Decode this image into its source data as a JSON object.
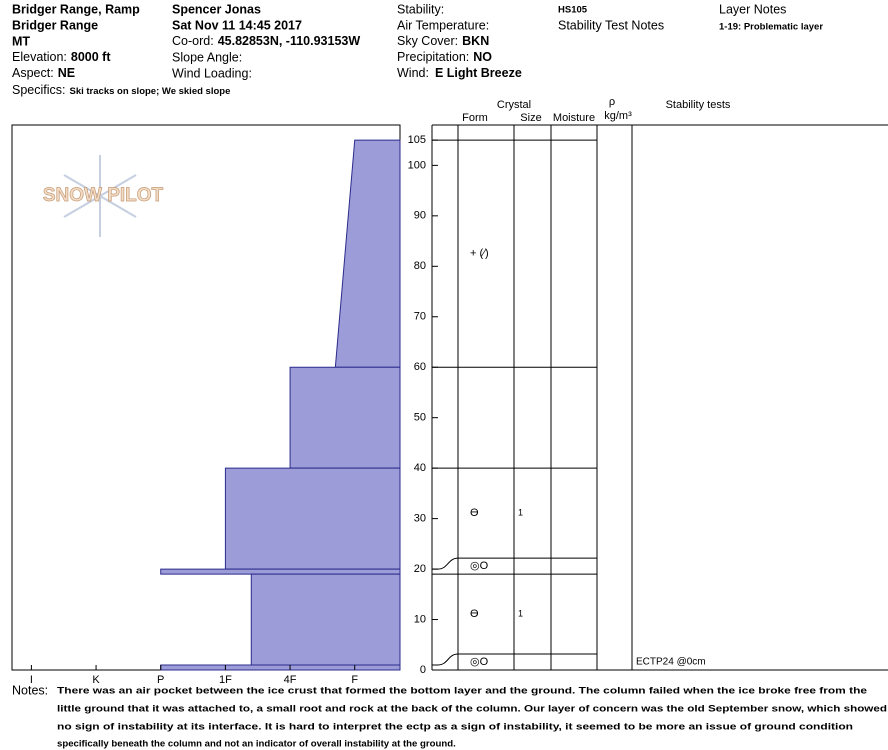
{
  "header": {
    "location": "Bridger Range, Ramp",
    "range": "Bridger Range",
    "state": "MT",
    "elevation": {
      "label": "Elevation:",
      "value": "8000 ft"
    },
    "aspect": {
      "label": "Aspect:",
      "value": "NE"
    },
    "specifics": {
      "label": "Specifics:",
      "value": "Ski tracks on slope; We skied slope"
    },
    "observer": "Spencer Jonas",
    "date": "Sat Nov 11 14:45 2017",
    "coord": {
      "label": "Co-ord:",
      "value": "45.82853N, -110.93153W"
    },
    "slope_angle": "Slope Angle:",
    "wind_loading": "Wind Loading:",
    "stability": "Stability:",
    "air_temperature": "Air Temperature:",
    "sky_cover": {
      "label": "Sky Cover:",
      "value": "BKN"
    },
    "precipitation": {
      "label": "Precipitation:",
      "value": "NO"
    },
    "wind": {
      "label": "Wind:",
      "value": "E Light Breeze"
    },
    "hs": "HS105",
    "stability_test_notes": "Stability Test Notes",
    "layer_notes": {
      "label": "Layer Notes",
      "value": "1-19: Problematic layer"
    }
  },
  "logo": "SNOW PILOT",
  "columns": {
    "crystal": "Crystal",
    "form": "Form",
    "size": "Size",
    "moisture": "Moisture",
    "rho": "ρ",
    "density_unit": "kg/m³",
    "stability": "Stability tests"
  },
  "chart_data": {
    "type": "snow-profile",
    "color": "#9c9cd8",
    "edge_color": "#2b2b8c",
    "ylim": [
      0,
      108
    ],
    "yticks": [
      0,
      10,
      20,
      30,
      40,
      50,
      60,
      70,
      80,
      90,
      100,
      105
    ],
    "xlim": [
      6.3,
      0.3
    ],
    "xticks": [
      {
        "value": 6,
        "label": "I"
      },
      {
        "value": 5,
        "label": "K"
      },
      {
        "value": 4,
        "label": "P"
      },
      {
        "value": 3,
        "label": "1F"
      },
      {
        "value": 2,
        "label": "4F"
      },
      {
        "value": 1,
        "label": "F"
      }
    ],
    "layers": [
      {
        "top": 105,
        "bottom": 60,
        "hardness_top": 1,
        "hardness_bottom": 1.3,
        "form": "+ (⁄)"
      },
      {
        "top": 60,
        "bottom": 40,
        "hardness": 2
      },
      {
        "top": 40,
        "bottom": 20,
        "hardness": 3,
        "form": "Ө",
        "size": "1"
      },
      {
        "top": 20,
        "bottom": 19,
        "hardness": 4,
        "form": "◎O"
      },
      {
        "top": 19,
        "bottom": 1,
        "hardness": 2.6,
        "form": "Ө",
        "size": "1"
      },
      {
        "top": 1,
        "bottom": 0,
        "hardness": 4,
        "form": "◎O"
      }
    ],
    "stability_tests": [
      {
        "height": 0,
        "label": "ECTP24 @0cm"
      }
    ]
  },
  "notes": {
    "label": "Notes:",
    "lines": [
      "There was an air pocket between the ice crust that formed the bottom layer and the ground. The column failed when the ice broke free from the",
      "little ground that it was attached to, a small root and rock at the back of the column. Our layer of concern was the old September snow, which showed",
      "no sign of instability at its interface. It is hard to interpret the ectp as a sign of instability, it seemed to be more an issue of ground condition",
      "specifically beneath the column and not an indicator of overall instability at the ground."
    ]
  }
}
